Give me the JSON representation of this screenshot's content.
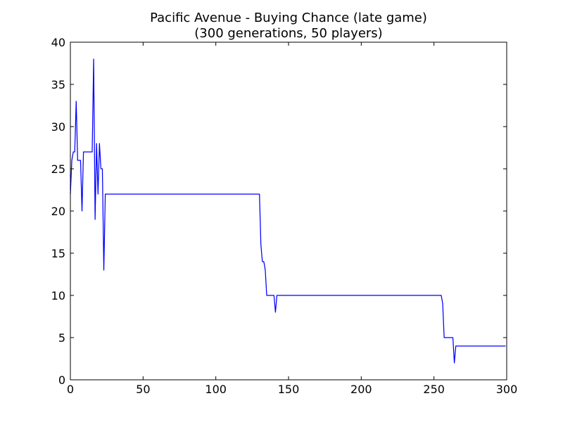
{
  "chart_data": {
    "type": "line",
    "title": "Pacific Avenue - Buying Chance (late game)",
    "subtitle": "(300 generations, 50 players)",
    "xlabel": "",
    "ylabel": "",
    "xlim": [
      0,
      300
    ],
    "ylim": [
      0,
      40
    ],
    "xticks": [
      0,
      50,
      100,
      150,
      200,
      250,
      300
    ],
    "yticks": [
      0,
      5,
      10,
      15,
      20,
      25,
      30,
      35,
      40
    ],
    "xtick_labels": [
      "0",
      "50",
      "100",
      "150",
      "200",
      "250",
      "300"
    ],
    "ytick_labels": [
      "0",
      "5",
      "10",
      "15",
      "20",
      "25",
      "30",
      "35",
      "40"
    ],
    "grid": false,
    "legend": "none",
    "series": [
      {
        "color": "#0000ff",
        "x": [
          0,
          1,
          2,
          3,
          4,
          5,
          6,
          7,
          8,
          9,
          10,
          11,
          12,
          13,
          14,
          15,
          16,
          17,
          18,
          19,
          20,
          21,
          22,
          23,
          24,
          25,
          26,
          130,
          131,
          132,
          133,
          134,
          135,
          136,
          137,
          138,
          139,
          140,
          141,
          142,
          143,
          255,
          256,
          257,
          258,
          262,
          263,
          264,
          265,
          266,
          299
        ],
        "y": [
          22,
          26,
          27,
          27,
          33,
          26,
          26,
          26,
          20,
          27,
          27,
          27,
          27,
          27,
          27,
          27,
          38,
          19,
          28,
          22,
          28,
          25,
          25,
          13,
          22,
          22,
          22,
          22,
          16,
          14,
          14,
          13,
          10,
          10,
          10,
          10,
          10,
          10,
          8,
          10,
          10,
          10,
          9,
          5,
          5,
          5,
          5,
          2,
          4,
          4,
          4
        ]
      }
    ]
  }
}
